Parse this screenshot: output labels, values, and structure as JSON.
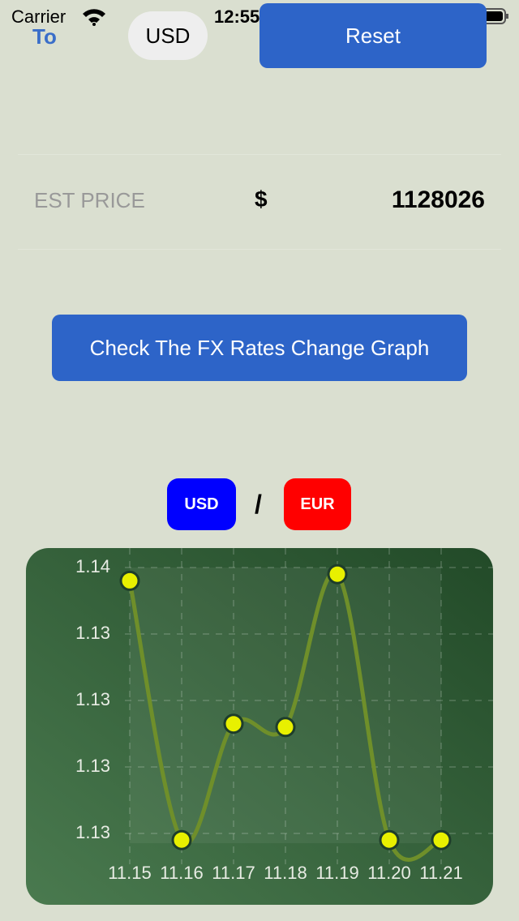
{
  "status_bar": {
    "carrier": "Carrier",
    "time": "12:55 PM"
  },
  "header": {
    "to_label": "To",
    "currency": "USD",
    "reset_button": "Reset"
  },
  "estimate": {
    "label": "EST PRICE",
    "currency_symbol": "$",
    "value": 1128026
  },
  "graph_button": "Check The FX Rates Change Graph",
  "pair": {
    "base": "USD",
    "separator": "/",
    "quote": "EUR"
  },
  "chart": {
    "type": "line",
    "categories": [
      "11.15",
      "11.16",
      "11.17",
      "11.18",
      "11.19",
      "11.20",
      "11.21"
    ],
    "values": [
      1.1356,
      1.1278,
      1.1313,
      1.1312,
      1.1358,
      1.1278,
      1.1278
    ],
    "color": "#6f8f2a",
    "point_color": "#e8f000",
    "ylim": [
      1.1275,
      1.1365
    ],
    "yticks": [
      {
        "value": 1.136,
        "label": "1.14"
      },
      {
        "value": 1.134,
        "label": "1.13"
      },
      {
        "value": 1.132,
        "label": "1.13"
      },
      {
        "value": 1.13,
        "label": "1.13"
      },
      {
        "value": 1.128,
        "label": "1.13"
      }
    ],
    "grid": true
  }
}
